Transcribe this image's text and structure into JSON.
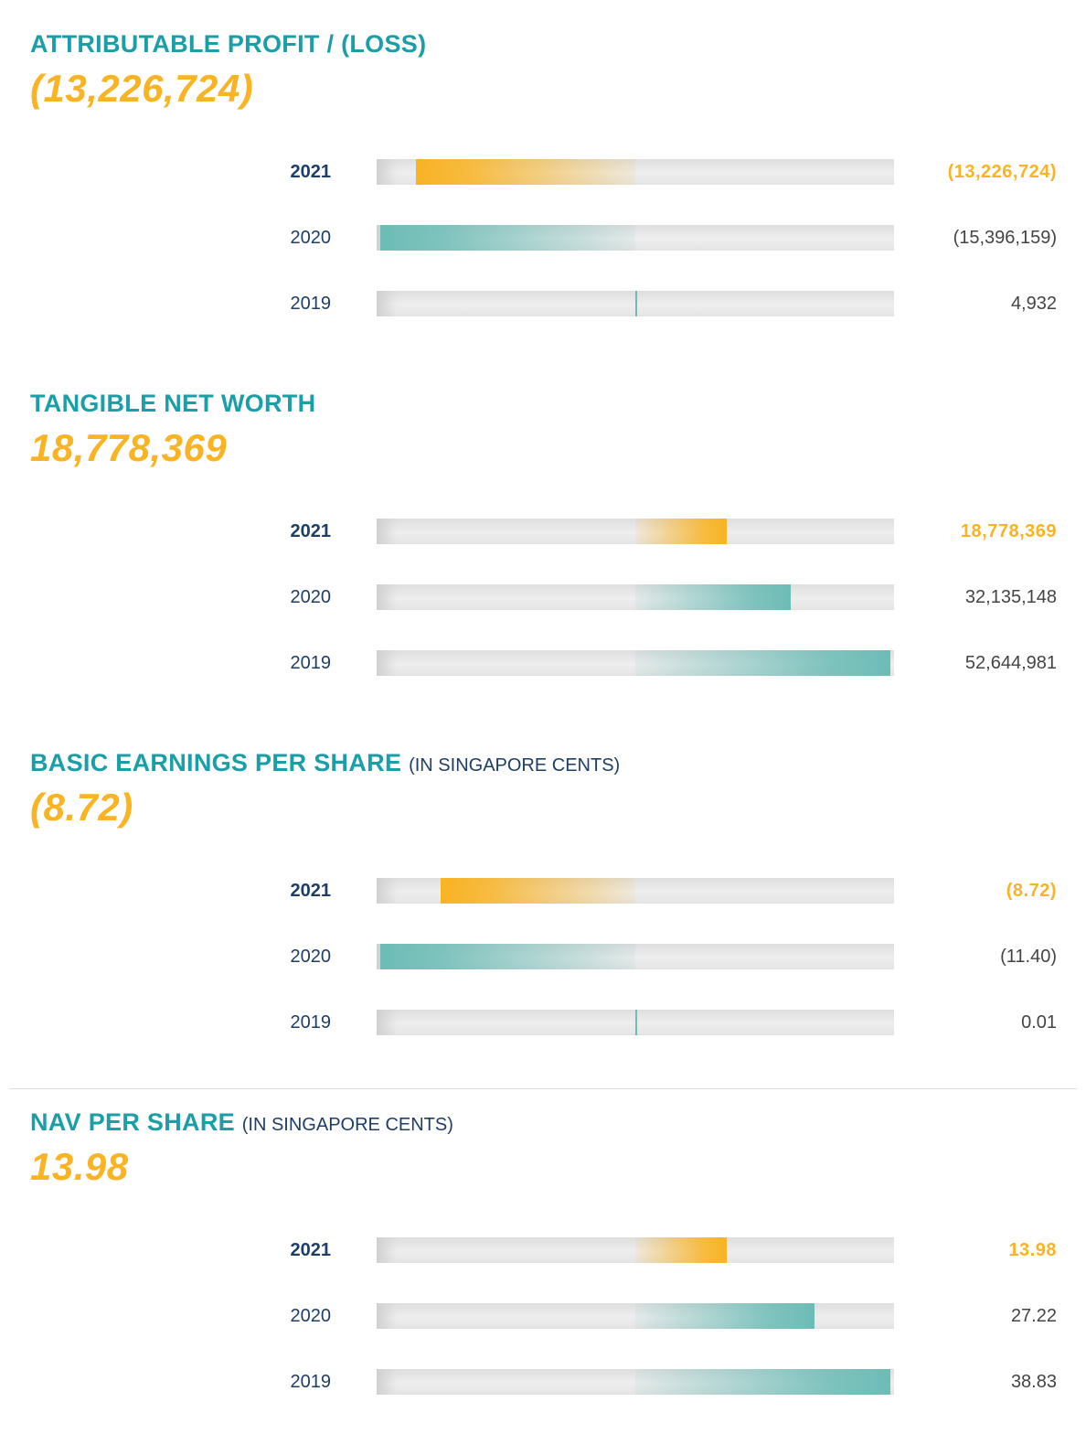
{
  "colors": {
    "title": "#1a9ea8",
    "highlight": "#f9b323",
    "teal_bar": "#6dbcb6",
    "year": "#1d3e66",
    "value": "#444444"
  },
  "sections": [
    {
      "title": "ATTRIBUTABLE PROFIT / (LOSS)",
      "suffix": "",
      "headline": "(13,226,724)",
      "rows": [
        {
          "year": "2021",
          "label": "(13,226,724)",
          "value": -13226724,
          "highlight": true
        },
        {
          "year": "2020",
          "label": "(15,396,159)",
          "value": -15396159,
          "highlight": false
        },
        {
          "year": "2019",
          "label": "4,932",
          "value": 4932,
          "highlight": false
        }
      ]
    },
    {
      "title": "TANGIBLE NET WORTH",
      "suffix": "",
      "headline": "18,778,369",
      "rows": [
        {
          "year": "2021",
          "label": "18,778,369",
          "value": 18778369,
          "highlight": true
        },
        {
          "year": "2020",
          "label": "32,135,148",
          "value": 32135148,
          "highlight": false
        },
        {
          "year": "2019",
          "label": "52,644,981",
          "value": 52644981,
          "highlight": false
        }
      ]
    },
    {
      "title": "BASIC EARNINGS PER SHARE",
      "suffix": "(IN SINGAPORE CENTS)",
      "headline": "(8.72)",
      "rows": [
        {
          "year": "2021",
          "label": "(8.72)",
          "value": -8.72,
          "highlight": true
        },
        {
          "year": "2020",
          "label": "(11.40)",
          "value": -11.4,
          "highlight": false
        },
        {
          "year": "2019",
          "label": "0.01",
          "value": 0.01,
          "highlight": false
        }
      ]
    },
    {
      "title": "NAV PER SHARE",
      "suffix": "(IN SINGAPORE CENTS)",
      "headline": "13.98",
      "rows": [
        {
          "year": "2021",
          "label": "13.98",
          "value": 13.98,
          "highlight": true
        },
        {
          "year": "2020",
          "label": "27.22",
          "value": 27.22,
          "highlight": false
        },
        {
          "year": "2019",
          "label": "38.83",
          "value": 38.83,
          "highlight": false
        }
      ]
    }
  ],
  "chart_data": [
    {
      "type": "bar",
      "orientation": "horizontal",
      "title": "ATTRIBUTABLE PROFIT / (LOSS)",
      "categories": [
        "2021",
        "2020",
        "2019"
      ],
      "values": [
        -13226724,
        -15396159,
        4932
      ]
    },
    {
      "type": "bar",
      "orientation": "horizontal",
      "title": "TANGIBLE NET WORTH",
      "categories": [
        "2021",
        "2020",
        "2019"
      ],
      "values": [
        18778369,
        32135148,
        52644981
      ]
    },
    {
      "type": "bar",
      "orientation": "horizontal",
      "title": "BASIC EARNINGS PER SHARE (IN SINGAPORE CENTS)",
      "categories": [
        "2021",
        "2020",
        "2019"
      ],
      "values": [
        -8.72,
        -11.4,
        0.01
      ]
    },
    {
      "type": "bar",
      "orientation": "horizontal",
      "title": "NAV PER SHARE (IN SINGAPORE CENTS)",
      "categories": [
        "2021",
        "2020",
        "2019"
      ],
      "values": [
        13.98,
        27.22,
        38.83
      ]
    }
  ]
}
